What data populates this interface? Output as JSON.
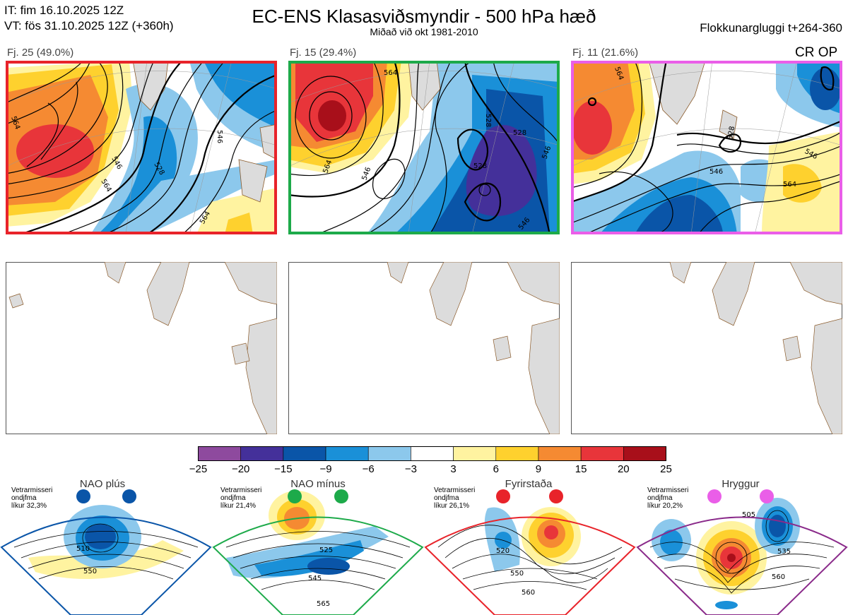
{
  "header": {
    "init_time": "IT: fim 16.10.2025 12Z",
    "valid_time": "VT: fös 31.10.2025 12Z  (+360h)",
    "title": "EC-ENS Klasasviðsmyndir - 500 hPa hæð",
    "subtitle": "Miðað við okt 1981-2010",
    "window": "Flokkunargluggi t+264-360"
  },
  "clusters": [
    {
      "label": "Fj. 25 (49.0%)",
      "frame_color": "#e8232a",
      "contours": [
        "564",
        "546",
        "528",
        "564",
        "546",
        "564"
      ]
    },
    {
      "label": "Fj. 15 (29.4%)",
      "frame_color": "#1daa4a",
      "contours": [
        "564",
        "528",
        "528",
        "528",
        "546",
        "564",
        "546",
        "546"
      ]
    },
    {
      "label": "Fj. 11 (21.6%)",
      "frame_color": "#ea5ee8",
      "contours": [
        "564",
        "528",
        "546",
        "564",
        "546"
      ]
    }
  ],
  "crop_label": "CR OP",
  "colorbar": {
    "ticks": [
      "−25",
      "−20",
      "−15",
      "−9",
      "−6",
      "−3",
      "3",
      "6",
      "9",
      "15",
      "20",
      "25"
    ],
    "colors": [
      "#8e4a9e",
      "#44309a",
      "#0a55a8",
      "#1a90d8",
      "#8cc8ec",
      "#ffffff",
      "#fff3a0",
      "#fed12e",
      "#f58a32",
      "#e8353a",
      "#a80f1a"
    ]
  },
  "regimes": [
    {
      "name": "NAO plús",
      "info": "Vetrarmisseri\nondjfma\nlíkur 32,3%",
      "dot_color": "#0a55a8",
      "frame_color": "#0a55a8",
      "contours": [
        "510",
        "550"
      ]
    },
    {
      "name": "NAO mínus",
      "info": "Vetrarmisseri\nondjfma\nlíkur 21,4%",
      "dot_color": "#1daa4a",
      "frame_color": "#1daa4a",
      "contours": [
        "525",
        "545",
        "565"
      ]
    },
    {
      "name": "Fyrirstaða",
      "info": "Vetrarmisseri\nondjfma\nlíkur 26,1%",
      "dot_color": "#e8232a",
      "frame_color": "#e8232a",
      "contours": [
        "520",
        "550",
        "560"
      ]
    },
    {
      "name": "Hryggur",
      "info": "Vetrarmisseri\nondjfma\nlíkur 20,2%",
      "dot_color": "#ea5ee8",
      "frame_color": "#8a2a8a",
      "contours": [
        "505",
        "535",
        "560"
      ]
    }
  ]
}
